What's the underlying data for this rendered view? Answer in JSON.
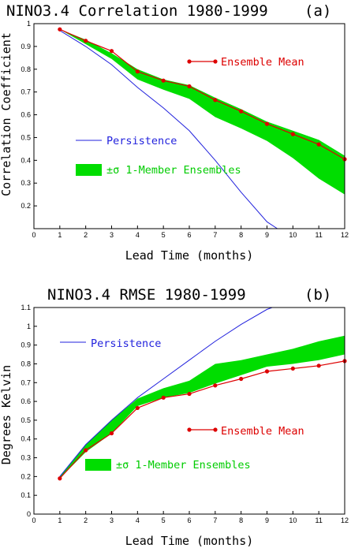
{
  "chart_data": [
    {
      "type": "line",
      "title": "NINO3.4 Correlation 1980-1999",
      "panel_label": "(a)",
      "xlabel": "Lead Time (months)",
      "ylabel": "Correlation Coefficient",
      "xlim": [
        0,
        12
      ],
      "ylim": [
        0.1,
        1.0
      ],
      "x_ticks": [
        "0",
        "1",
        "2",
        "3",
        "4",
        "5",
        "6",
        "7",
        "8",
        "9",
        "10",
        "11",
        "12"
      ],
      "y_ticks": [
        "0.2",
        "0.3",
        "0.4",
        "0.5",
        "0.6",
        "0.7",
        "0.8",
        "0.9",
        "1"
      ],
      "legend": {
        "ensemble_mean": "Ensemble Mean",
        "persistence": "Persistence",
        "band": "±σ 1-Member Ensembles"
      },
      "colors": {
        "ensemble_mean": "#dd0000",
        "persistence": "#2222dd",
        "band": "#00dd00"
      },
      "x": [
        1,
        2,
        3,
        4,
        5,
        6,
        7,
        8,
        9,
        10,
        11,
        12
      ],
      "series": [
        {
          "name": "Ensemble Mean",
          "values": [
            0.975,
            0.925,
            0.88,
            0.79,
            0.75,
            0.725,
            0.665,
            0.615,
            0.56,
            0.515,
            0.47,
            0.405
          ]
        },
        {
          "name": "Persistence",
          "x": [
            1,
            2,
            3,
            4,
            5,
            6,
            7,
            8,
            9,
            9.4
          ],
          "values": [
            0.97,
            0.9,
            0.82,
            0.72,
            0.63,
            0.53,
            0.4,
            0.26,
            0.13,
            0.1
          ]
        },
        {
          "name": "±σ 1-Member Ensembles",
          "upper": [
            0.975,
            0.93,
            0.87,
            0.8,
            0.755,
            0.73,
            0.675,
            0.625,
            0.57,
            0.53,
            0.49,
            0.42
          ],
          "lower": [
            0.975,
            0.91,
            0.845,
            0.755,
            0.71,
            0.67,
            0.59,
            0.54,
            0.485,
            0.41,
            0.32,
            0.25
          ]
        }
      ]
    },
    {
      "type": "line",
      "title": "NINO3.4 RMSE 1980-1999",
      "panel_label": "(b)",
      "xlabel": "Lead Time (months)",
      "ylabel": "Degrees Kelvin",
      "xlim": [
        0,
        12
      ],
      "ylim": [
        0,
        1.1
      ],
      "x_ticks": [
        "0",
        "1",
        "2",
        "3",
        "4",
        "5",
        "6",
        "7",
        "8",
        "9",
        "10",
        "11",
        "12"
      ],
      "y_ticks": [
        "0",
        "0.1",
        "0.2",
        "0.3",
        "0.4",
        "0.5",
        "0.6",
        "0.7",
        "0.8",
        "0.9",
        "1",
        "1.1"
      ],
      "legend": {
        "persistence": "Persistence",
        "ensemble_mean": "Ensemble Mean",
        "band": "±σ 1-Member Ensembles"
      },
      "colors": {
        "ensemble_mean": "#dd0000",
        "persistence": "#2222dd",
        "band": "#00dd00"
      },
      "x": [
        1,
        2,
        3,
        4,
        5,
        6,
        7,
        8,
        9,
        10,
        11,
        12
      ],
      "series": [
        {
          "name": "Ensemble Mean",
          "values": [
            0.19,
            0.34,
            0.43,
            0.565,
            0.62,
            0.64,
            0.685,
            0.72,
            0.76,
            0.775,
            0.79,
            0.815
          ]
        },
        {
          "name": "Persistence",
          "x": [
            1,
            2,
            3,
            4,
            5,
            6,
            7,
            8,
            9,
            9.2
          ],
          "values": [
            0.2,
            0.37,
            0.5,
            0.62,
            0.72,
            0.82,
            0.92,
            1.01,
            1.09,
            1.1
          ]
        },
        {
          "name": "±σ 1-Member Ensembles",
          "upper": [
            0.2,
            0.37,
            0.5,
            0.615,
            0.67,
            0.71,
            0.8,
            0.82,
            0.85,
            0.88,
            0.92,
            0.95
          ],
          "lower": [
            0.19,
            0.33,
            0.43,
            0.575,
            0.62,
            0.645,
            0.695,
            0.74,
            0.785,
            0.8,
            0.82,
            0.85
          ]
        }
      ]
    }
  ]
}
